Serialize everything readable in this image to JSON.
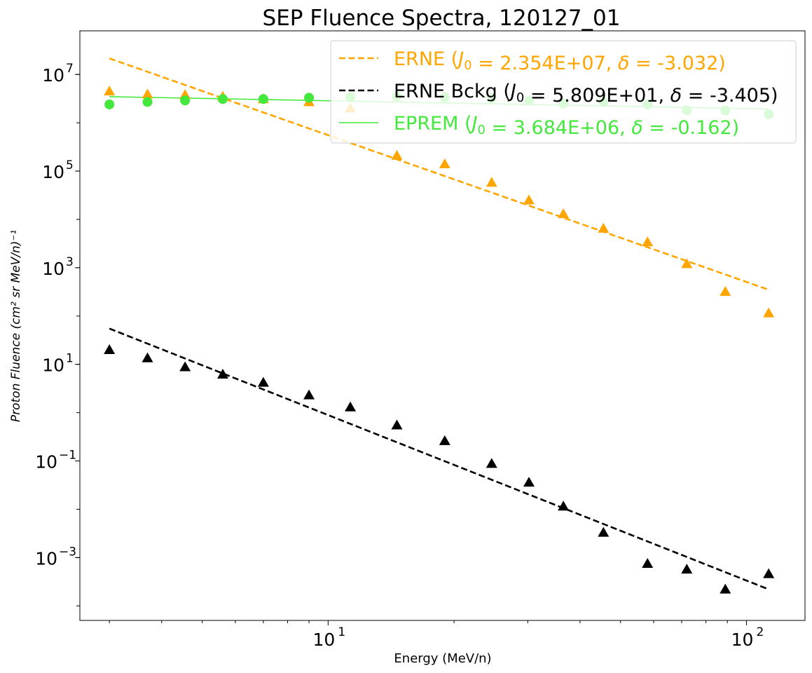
{
  "chart_data": {
    "type": "scatter",
    "title": "SEP Fluence Spectra, 120127_01",
    "xlabel": "Energy (MeV/n)",
    "ylabel": "Proton Fluence (cm² sr MeV/n)⁻¹",
    "xscale": "log",
    "yscale": "log",
    "xlim": [
      2.55,
      138
    ],
    "ylim": [
      5e-05,
      80000000
    ],
    "x_ticks": [
      {
        "value": 10,
        "base": "10",
        "exp": "1"
      },
      {
        "value": 100,
        "base": "10",
        "exp": "2"
      }
    ],
    "y_ticks": [
      {
        "value": 0.001,
        "base": "10",
        "exp": "−3"
      },
      {
        "value": 0.1,
        "base": "10",
        "exp": "−1"
      },
      {
        "value": 10,
        "base": "10",
        "exp": "1"
      },
      {
        "value": 1000,
        "base": "10",
        "exp": "3"
      },
      {
        "value": 100000,
        "base": "10",
        "exp": "5"
      },
      {
        "value": 10000000,
        "base": "10",
        "exp": "7"
      }
    ],
    "grid": false,
    "legend_position": "top-right",
    "colors": {
      "erne": "#ffa500",
      "background": "#000000",
      "eprem": "#44e83c"
    },
    "legend": [
      {
        "name": "ERNE",
        "style": "dashed",
        "color": "#ffa500",
        "J0": "2.354E+07",
        "delta": "-3.032"
      },
      {
        "name": "ERNE Bckg",
        "style": "dashed",
        "color": "#000000",
        "J0": "5.809E+01",
        "delta": "-3.405"
      },
      {
        "name": "EPREM",
        "style": "solid",
        "color": "#44e83c",
        "J0": "3.684E+06",
        "delta": "-0.162"
      }
    ],
    "series": [
      {
        "name": "ERNE",
        "marker": "triangle",
        "color": "#ffa500",
        "x": [
          3.0,
          3.7,
          4.55,
          5.6,
          7.0,
          9.0,
          11.3,
          14.6,
          19.0,
          24.6,
          30.2,
          36.5,
          45.5,
          58.0,
          72.0,
          89.0,
          113.0
        ],
        "y": [
          4500000,
          3900000,
          3800000,
          3500000,
          3100000,
          2700000,
          2000000,
          210000,
          140000,
          58000,
          25000,
          13000,
          6500,
          3400,
          1200,
          320,
          115
        ]
      },
      {
        "name": "ERNE Bckg",
        "marker": "triangle",
        "color": "#000000",
        "x": [
          3.0,
          3.7,
          4.55,
          5.6,
          7.0,
          9.0,
          11.3,
          14.6,
          19.0,
          24.6,
          30.2,
          36.5,
          45.5,
          58.0,
          72.0,
          89.0,
          113.0
        ],
        "y": [
          20,
          13.5,
          8.8,
          6.2,
          4.2,
          2.3,
          1.3,
          0.55,
          0.26,
          0.088,
          0.036,
          0.0115,
          0.0033,
          0.00075,
          0.00057,
          0.00022,
          0.00046
        ]
      },
      {
        "name": "EPREM",
        "marker": "circle",
        "color": "#44e83c",
        "x": [
          3.0,
          3.7,
          4.55,
          5.6,
          7.0,
          9.0,
          11.3,
          14.6,
          19.0,
          24.6,
          30.2,
          36.5,
          45.5,
          58.0,
          72.0,
          89.0,
          113.0
        ],
        "y": [
          2400000,
          2700000,
          2900000,
          3100000,
          3100000,
          3300000,
          3400000,
          3500000,
          3400000,
          3200000,
          2900000,
          2500000,
          2700000,
          2400000,
          1800000,
          1800000,
          1500000
        ]
      }
    ],
    "fits": [
      {
        "name": "ERNE",
        "style": "dashed",
        "color": "#ffa500",
        "x": [
          3.0,
          113.0
        ],
        "y": [
          21500000,
          350
        ]
      },
      {
        "name": "ERNE Bckg",
        "style": "dashed",
        "color": "#000000",
        "x": [
          3.0,
          113.0
        ],
        "y": [
          55,
          0.00022
        ]
      },
      {
        "name": "EPREM",
        "style": "solid",
        "color": "#44e83c",
        "x": [
          3.0,
          113.0
        ],
        "y": [
          3470000,
          1930000
        ]
      }
    ]
  }
}
